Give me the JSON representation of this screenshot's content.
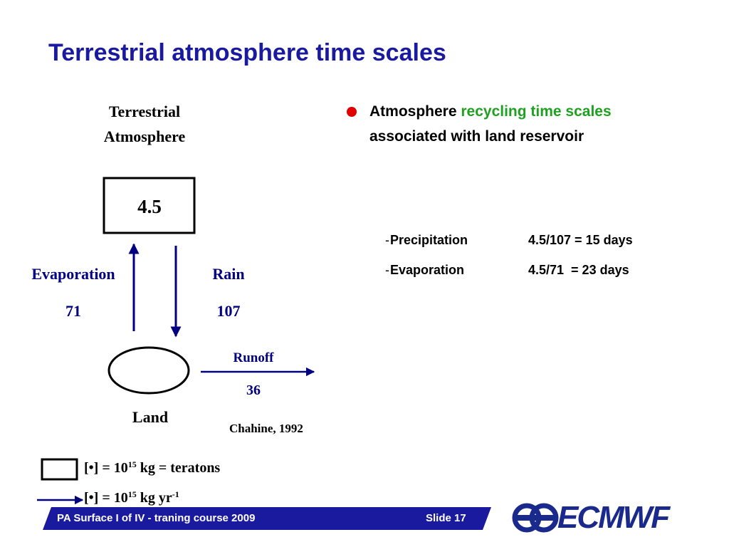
{
  "title": "Terrestrial atmosphere time scales",
  "diagram": {
    "reservoir": {
      "label_lines": [
        "Terrestrial",
        "Atmosphere"
      ],
      "value": "4.5"
    },
    "evaporation": {
      "label": "Evaporation",
      "value": "71"
    },
    "rain": {
      "label": "Rain",
      "value": "107"
    },
    "runoff": {
      "label": "Runoff",
      "value": "36"
    },
    "land": {
      "label": "Land"
    },
    "citation": "Chahine, 1992"
  },
  "legend": {
    "box": {
      "text": "[•] = 10",
      "sup": "15",
      "rest": " kg = teratons"
    },
    "arrow": {
      "text": "[•] = 10",
      "sup": "15",
      "rest": " kg yr",
      "sup2": "-1"
    }
  },
  "bullet": {
    "lead": "Atmosphere ",
    "highlight": "recycling time scales",
    "line2": "associated with land reservoir"
  },
  "rows": [
    {
      "prefix": "-",
      "label": "Precipitation",
      "value": "4.5/107 = 15 days"
    },
    {
      "prefix": "-",
      "label": "Evaporation",
      "value": "4.5/71  = 23 days"
    }
  ],
  "footer": {
    "course": "PA Surface I of IV - traning course 2009",
    "slide": "Slide 17",
    "logo": "ECMWF"
  }
}
